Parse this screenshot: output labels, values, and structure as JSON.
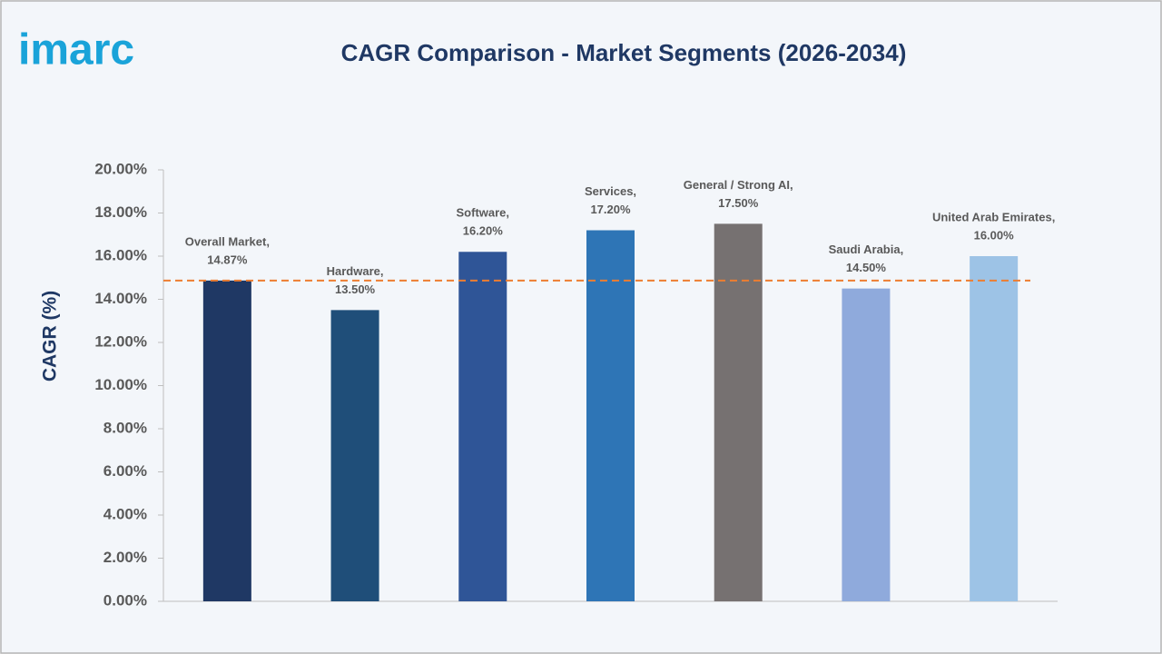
{
  "logo": "imarc",
  "chart_data": {
    "type": "bar",
    "title": "CAGR Comparison -  Market Segments (2026-2034)",
    "y_label": "CAGR (%)",
    "categories": [
      "Overall Market,",
      "Hardware,",
      "Software,",
      "Services,",
      "General / Strong AI,",
      "Saudi Arabia,",
      "United Arab Emirates,"
    ],
    "values": [
      14.87,
      13.5,
      16.2,
      17.2,
      17.5,
      14.5,
      16.0
    ],
    "value_labels": [
      "14.87%",
      "13.50%",
      "16.20%",
      "17.20%",
      "17.50%",
      "14.50%",
      "16.00%"
    ],
    "colors": [
      "#1f3864",
      "#1f4e79",
      "#2f5597",
      "#2e75b6",
      "#767171",
      "#8faadc",
      "#9dc3e6"
    ],
    "ylim": [
      0,
      20
    ],
    "yticks": [
      {
        "value": 0,
        "label": "0.00%"
      },
      {
        "value": 2,
        "label": "2.00%"
      },
      {
        "value": 4,
        "label": "4.00%"
      },
      {
        "value": 6,
        "label": "6.00%"
      },
      {
        "value": 8,
        "label": "8.00%"
      },
      {
        "value": 10,
        "label": "10.00%"
      },
      {
        "value": 12,
        "label": "12.00%"
      },
      {
        "value": 14,
        "label": "14.00%"
      },
      {
        "value": 16,
        "label": "16.00%"
      },
      {
        "value": 18,
        "label": "18.00%"
      },
      {
        "value": 20,
        "label": "20.00%"
      }
    ],
    "reference_line": {
      "value": 14.87,
      "color": "#ed7d31"
    },
    "grid": false
  }
}
